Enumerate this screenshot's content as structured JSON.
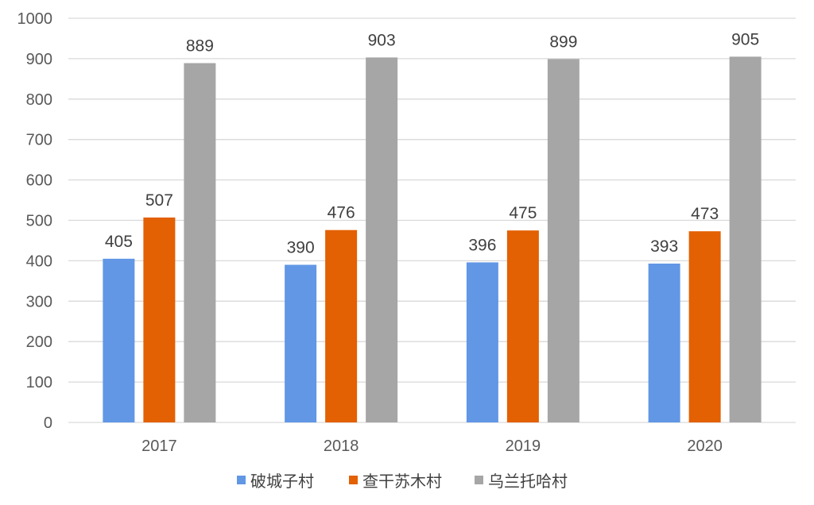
{
  "chart_data": {
    "type": "bar",
    "title": "",
    "xlabel": "",
    "ylabel": "",
    "categories": [
      "2017",
      "2018",
      "2019",
      "2020"
    ],
    "series": [
      {
        "name": "破城子村",
        "color": "#6197E5",
        "values": [
          405,
          390,
          396,
          393
        ]
      },
      {
        "name": "查干苏木村",
        "color": "#E36003",
        "values": [
          507,
          476,
          475,
          473
        ]
      },
      {
        "name": "乌兰托哈村",
        "color": "#A6A6A6",
        "values": [
          889,
          903,
          899,
          905
        ]
      }
    ],
    "ylim": [
      0,
      1000
    ],
    "yticks": [
      "0",
      "100",
      "200",
      "300",
      "400",
      "500",
      "600",
      "700",
      "800",
      "900",
      "1000"
    ],
    "grid": true,
    "gridline_color": "#D9D9D9",
    "data_labels": true,
    "legend_position": "bottom"
  }
}
